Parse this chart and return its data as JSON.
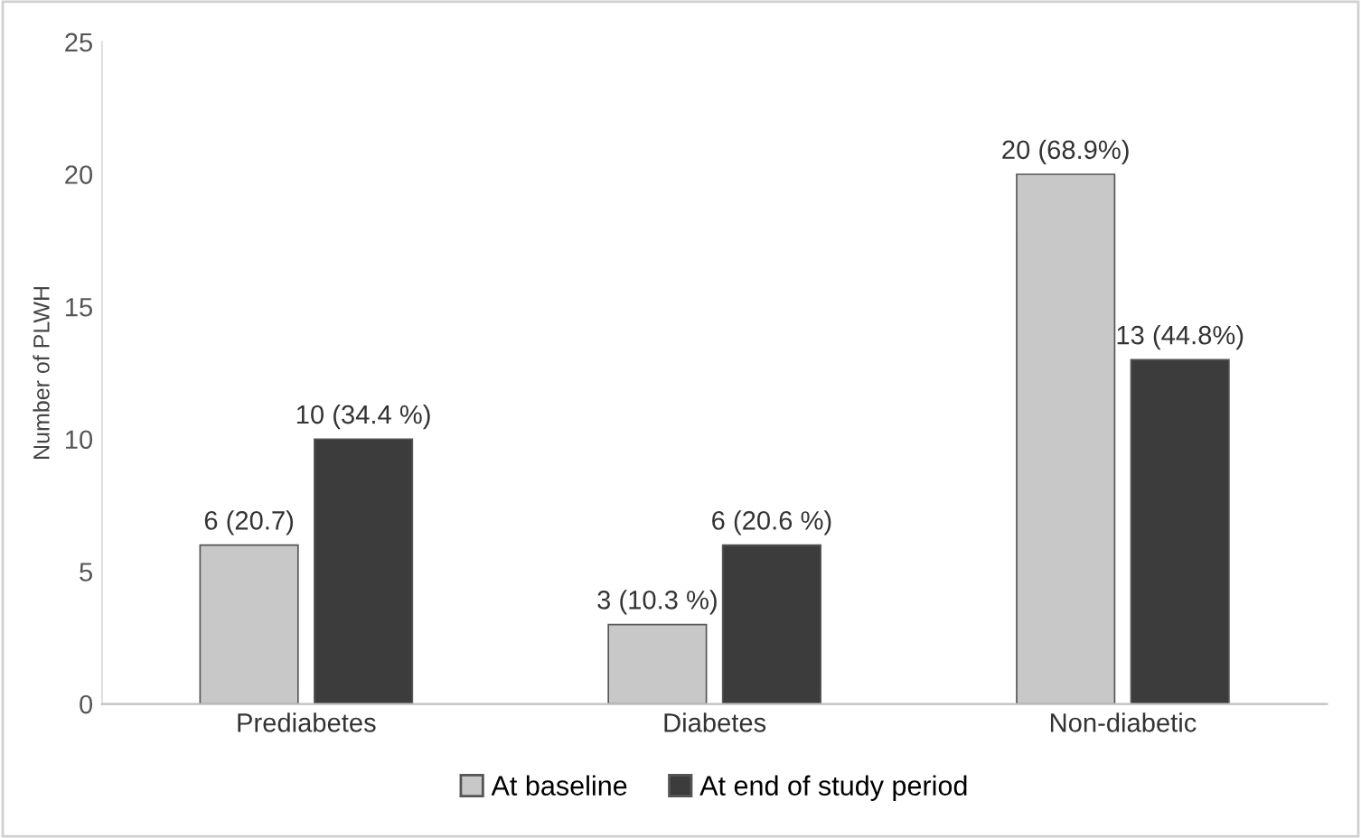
{
  "chart_data": {
    "type": "bar",
    "ylabel": "Number of PLWH",
    "categories": [
      "Prediabetes",
      "Diabetes",
      "Non-diabetic"
    ],
    "series": [
      {
        "name": "At baseline",
        "color": "#c8c8c8",
        "values": [
          6,
          3,
          20
        ],
        "value_labels": [
          "6 (20.7)",
          "3 (10.3 %)",
          "20 (68.9%)"
        ]
      },
      {
        "name": "At end of study period",
        "color": "#3c3c3c",
        "values": [
          10,
          6,
          13
        ],
        "value_labels": [
          "10 (34.4 %)",
          "6 (20.6 %)",
          "13 (44.8%)"
        ]
      }
    ],
    "ylim": [
      0,
      25
    ],
    "yticks": [
      0,
      5,
      10,
      15,
      20,
      25
    ],
    "grid": false,
    "legend": "bottom"
  }
}
